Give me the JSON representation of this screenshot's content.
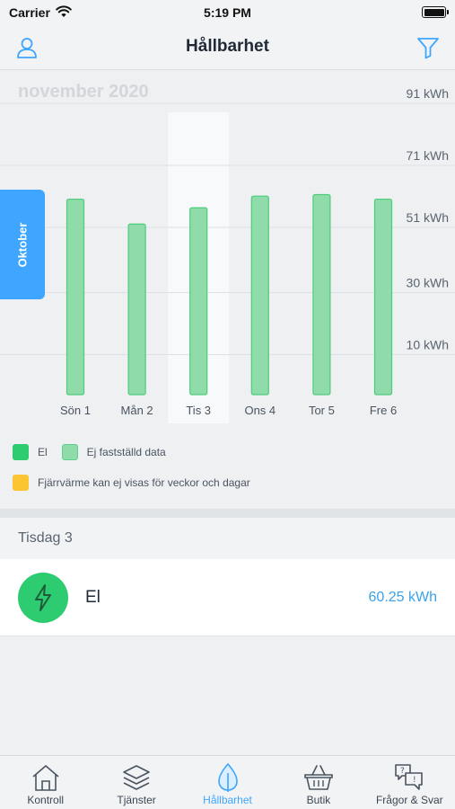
{
  "status_bar": {
    "carrier": "Carrier",
    "time": "5:19 PM"
  },
  "nav": {
    "title": "Hållbarhet",
    "left_icon": "user-icon",
    "right_icon": "filter-icon"
  },
  "chart_data": {
    "type": "bar",
    "title": "november 2020",
    "categories": [
      "Sön 1",
      "Mån 2",
      "Tis 3",
      "Ons 4",
      "Tor 5",
      "Fre 6"
    ],
    "series": [
      {
        "values": [
          63,
          55,
          60.25,
          64,
          64.5,
          63
        ],
        "color": "#8fdcaa"
      }
    ],
    "selected_category": "Tis 3",
    "y_ticks": [
      {
        "value": 10,
        "label": "10 kWh"
      },
      {
        "value": 30,
        "label": "30 kWh"
      },
      {
        "value": 51,
        "label": "51 kWh"
      },
      {
        "value": 71,
        "label": "71 kWh"
      },
      {
        "value": 91,
        "label": "91 kWh"
      }
    ],
    "ylim": [
      0,
      91
    ],
    "grid": true,
    "legend_position": "bottom"
  },
  "month_tab": {
    "label": "Oktober"
  },
  "legend": {
    "el": "El",
    "unconfirmed": "Ej fastställd data",
    "district_heating_note": "Fjärrvärme kan ej visas för veckor och dagar"
  },
  "colors": {
    "accent": "#3ea6ff",
    "el": "#2ecc71",
    "unconfirmed": "#8fdcaa",
    "district": "#fbc531"
  },
  "detail": {
    "day_header": "Tisdag 3",
    "row": {
      "label": "El",
      "value": "60.25 kWh",
      "icon": "lightning-icon"
    }
  },
  "tab_bar": {
    "active": 2,
    "items": [
      {
        "label": "Kontroll",
        "icon": "house-icon"
      },
      {
        "label": "Tjänster",
        "icon": "layers-icon"
      },
      {
        "label": "Hållbarhet",
        "icon": "leaf-icon"
      },
      {
        "label": "Butik",
        "icon": "basket-icon"
      },
      {
        "label": "Frågor & Svar",
        "icon": "chat-icon"
      }
    ]
  }
}
